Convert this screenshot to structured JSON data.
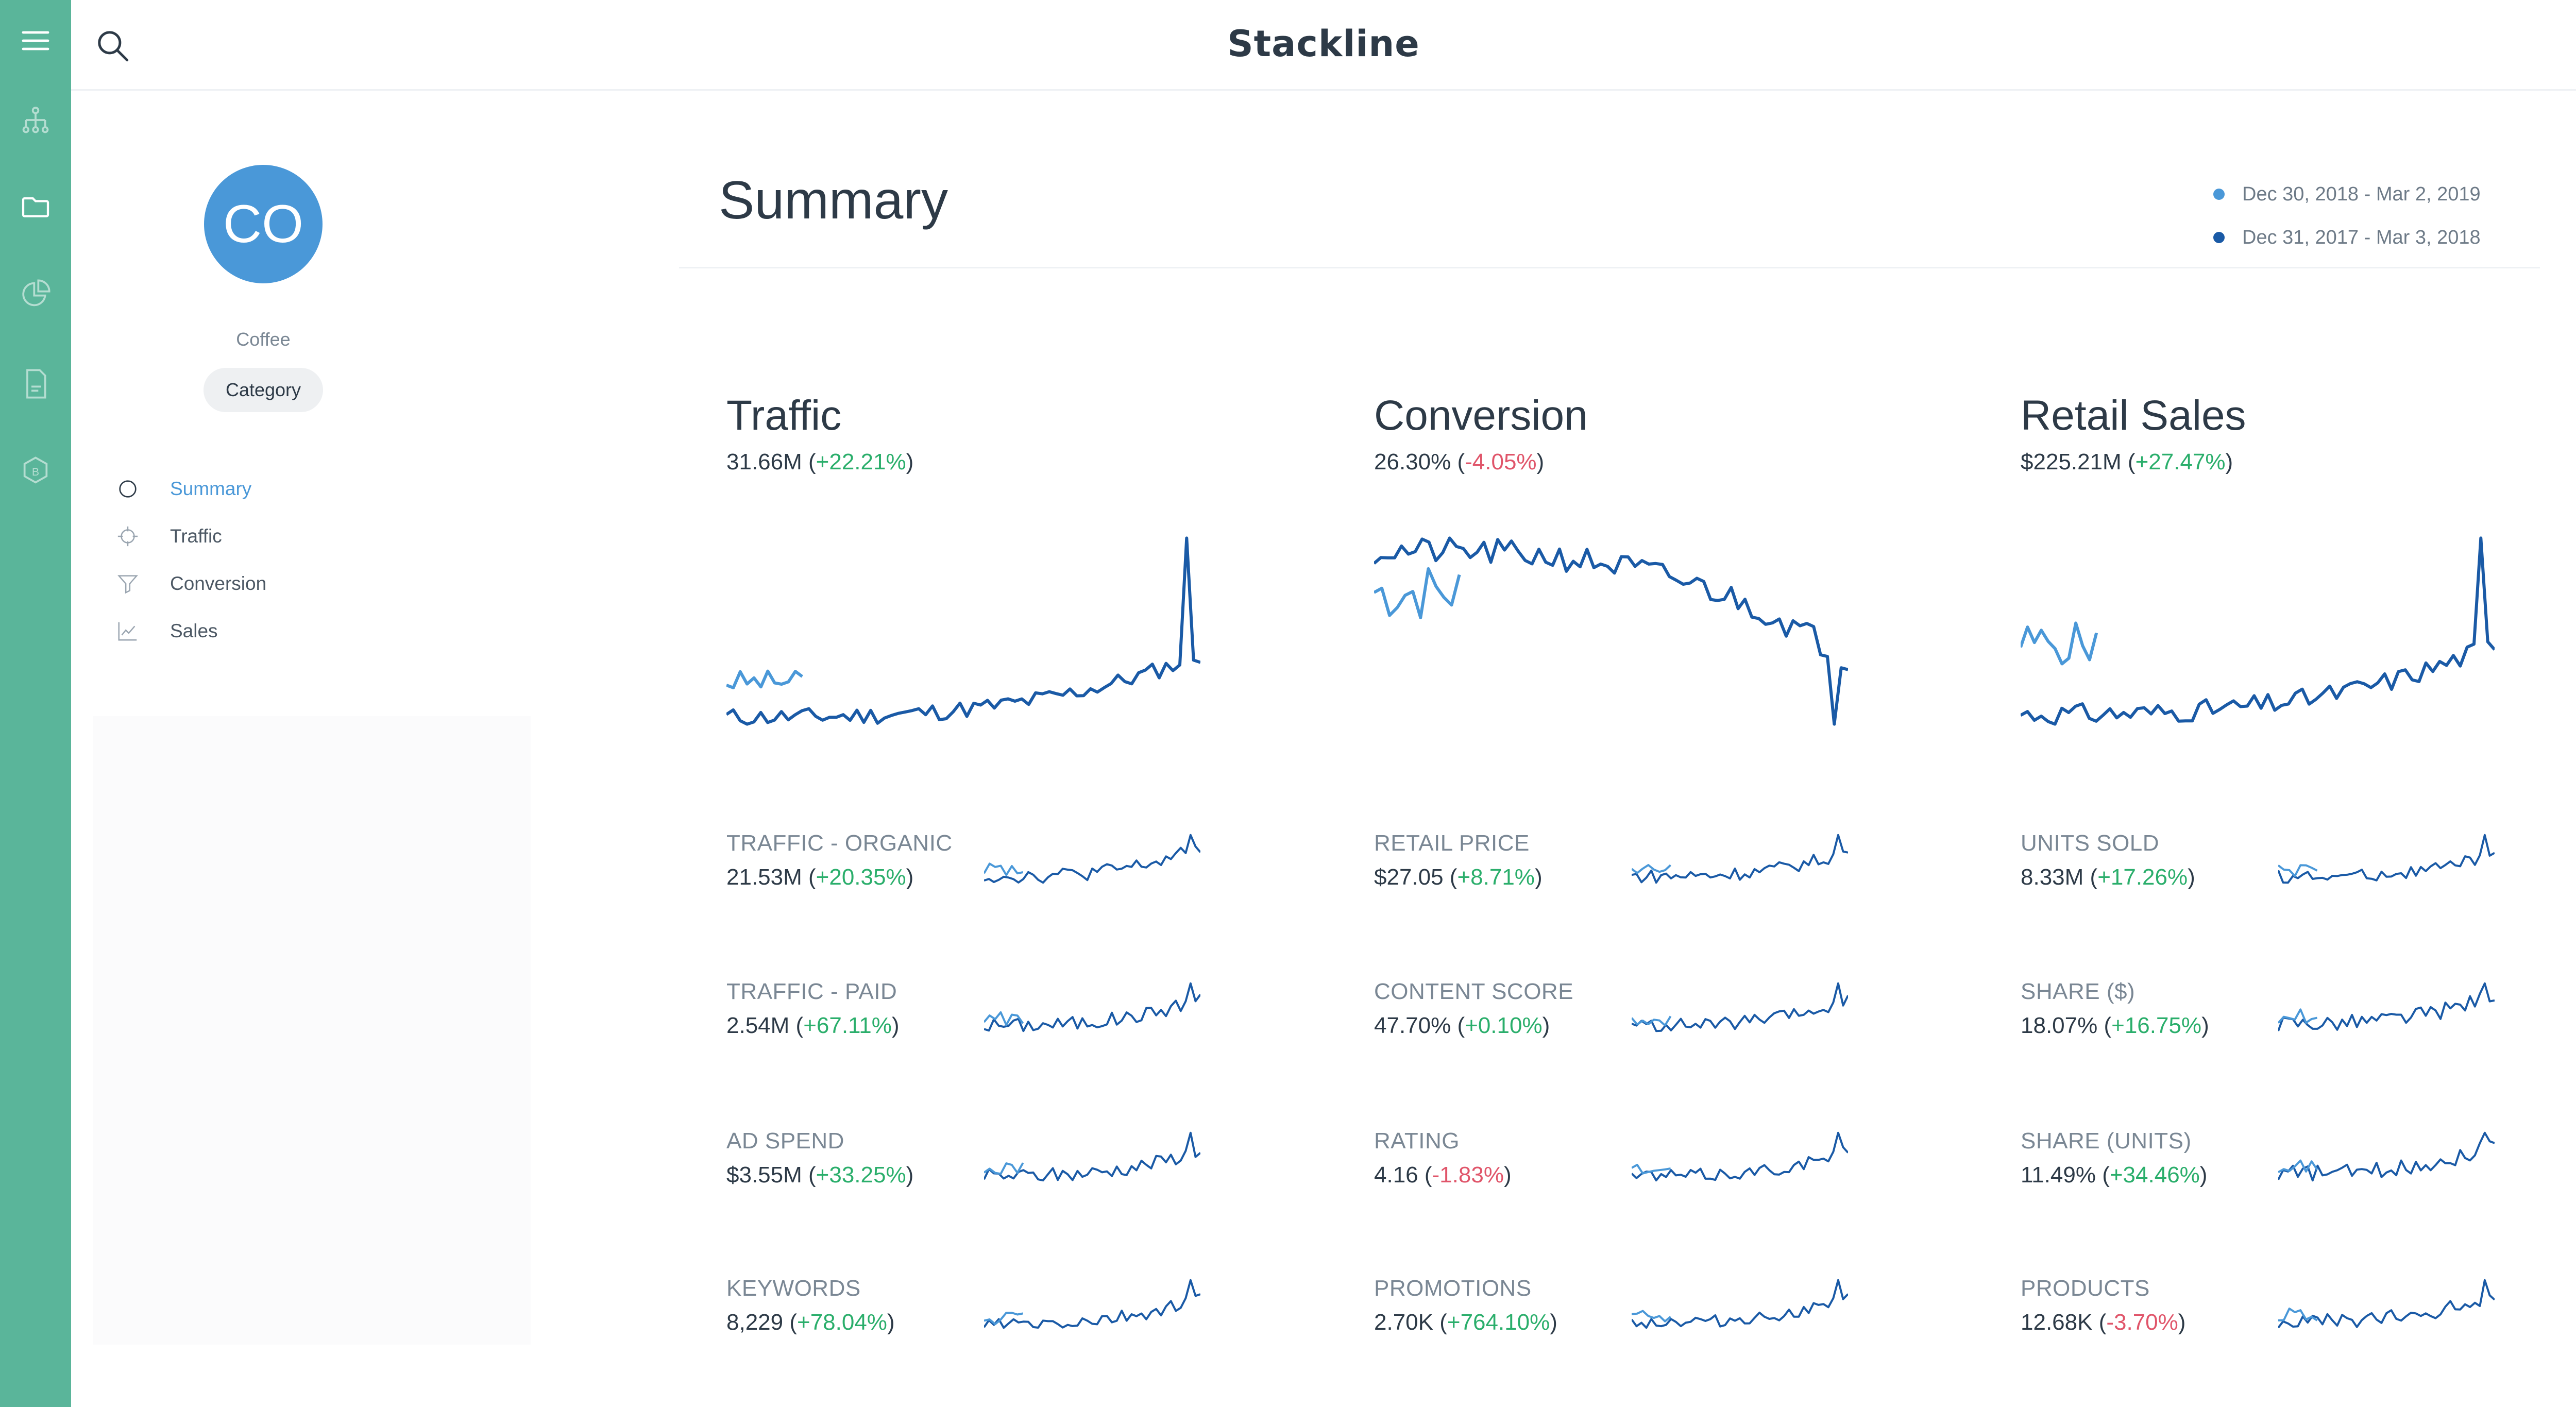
{
  "app": {
    "brand": "Stackline"
  },
  "colors": {
    "rail": "#5ab59a",
    "accent": "#4a98d8",
    "current_series": "#1a5aa6",
    "prior_series": "#4a98d8",
    "positive": "#2aae6b",
    "negative": "#e0556a"
  },
  "rail_icons": [
    "menu-icon",
    "hierarchy-icon",
    "folder-icon",
    "pie-chart-icon",
    "document-icon",
    "settings-icon"
  ],
  "profile": {
    "initials": "CO",
    "name": "Coffee",
    "type": "Category"
  },
  "nav": [
    {
      "label": "Summary",
      "icon": "circle-icon",
      "active": true
    },
    {
      "label": "Traffic",
      "icon": "crosshair-icon",
      "active": false
    },
    {
      "label": "Conversion",
      "icon": "funnel-icon",
      "active": false
    },
    {
      "label": "Sales",
      "icon": "line-chart-icon",
      "active": false
    }
  ],
  "header": {
    "title": "Summary",
    "legend": [
      {
        "label": "Dec 30, 2018 - Mar 2, 2019",
        "color": "#4a98d8"
      },
      {
        "label": "Dec 31, 2017 - Mar 3, 2018",
        "color": "#1a5aa6"
      }
    ]
  },
  "main_metrics": [
    {
      "title": "Traffic",
      "value": "31.66M",
      "change": "+22.21%",
      "trend": "up"
    },
    {
      "title": "Conversion",
      "value": "26.30%",
      "change": "-4.05%",
      "trend": "down"
    },
    {
      "title": "Retail Sales",
      "value": "$225.21M",
      "change": "+27.47%",
      "trend": "up"
    }
  ],
  "mini_metrics": [
    [
      {
        "label": "TRAFFIC - ORGANIC",
        "value": "21.53M",
        "change": "+20.35%",
        "trend": "up"
      },
      {
        "label": "TRAFFIC - PAID",
        "value": "2.54M",
        "change": "+67.11%",
        "trend": "up"
      },
      {
        "label": "AD SPEND",
        "value": "$3.55M",
        "change": "+33.25%",
        "trend": "up"
      },
      {
        "label": "KEYWORDS",
        "value": "8,229",
        "change": "+78.04%",
        "trend": "up"
      }
    ],
    [
      {
        "label": "RETAIL PRICE",
        "value": "$27.05",
        "change": "+8.71%",
        "trend": "up"
      },
      {
        "label": "CONTENT SCORE",
        "value": "47.70%",
        "change": "+0.10%",
        "trend": "up"
      },
      {
        "label": "RATING",
        "value": "4.16",
        "change": "-1.83%",
        "trend": "down"
      },
      {
        "label": "PROMOTIONS",
        "value": "2.70K",
        "change": "+764.10%",
        "trend": "up"
      }
    ],
    [
      {
        "label": "UNITS SOLD",
        "value": "8.33M",
        "change": "+17.26%",
        "trend": "up"
      },
      {
        "label": "SHARE ($)",
        "value": "18.07%",
        "change": "+16.75%",
        "trend": "up"
      },
      {
        "label": "SHARE (UNITS)",
        "value": "11.49%",
        "change": "+34.46%",
        "trend": "up"
      },
      {
        "label": "PRODUCTS",
        "value": "12.68K",
        "change": "-3.70%",
        "trend": "down"
      }
    ]
  ]
}
